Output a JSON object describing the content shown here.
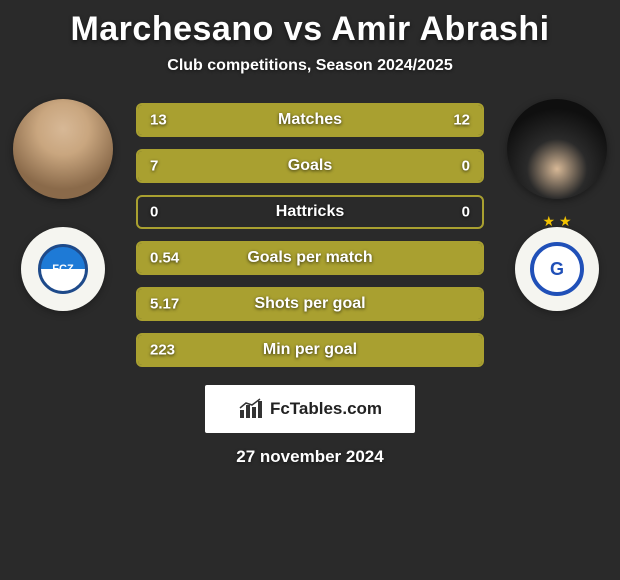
{
  "header": {
    "title": "Marchesano vs Amir Abrashi",
    "subtitle": "Club competitions, Season 2024/2025"
  },
  "players": {
    "left": {
      "name": "Marchesano",
      "club_code": "FCZ"
    },
    "right": {
      "name": "Amir Abrashi",
      "club_code": "G"
    }
  },
  "colors": {
    "bar_fill": "#a9a030",
    "bar_border": "#a9a030",
    "bg": "#2a2a2a",
    "text": "#ffffff"
  },
  "stats": [
    {
      "label": "Matches",
      "left_val": "13",
      "right_val": "12",
      "left_pct": 52,
      "right_pct": 48
    },
    {
      "label": "Goals",
      "left_val": "7",
      "right_val": "0",
      "left_pct": 100,
      "right_pct": 0
    },
    {
      "label": "Hattricks",
      "left_val": "0",
      "right_val": "0",
      "left_pct": 0,
      "right_pct": 0
    },
    {
      "label": "Goals per match",
      "left_val": "0.54",
      "right_val": "",
      "left_pct": 100,
      "right_pct": 0
    },
    {
      "label": "Shots per goal",
      "left_val": "5.17",
      "right_val": "",
      "left_pct": 100,
      "right_pct": 0
    },
    {
      "label": "Min per goal",
      "left_val": "223",
      "right_val": "",
      "left_pct": 100,
      "right_pct": 0
    }
  ],
  "branding": {
    "label": "FcTables.com"
  },
  "date": "27 november 2024"
}
